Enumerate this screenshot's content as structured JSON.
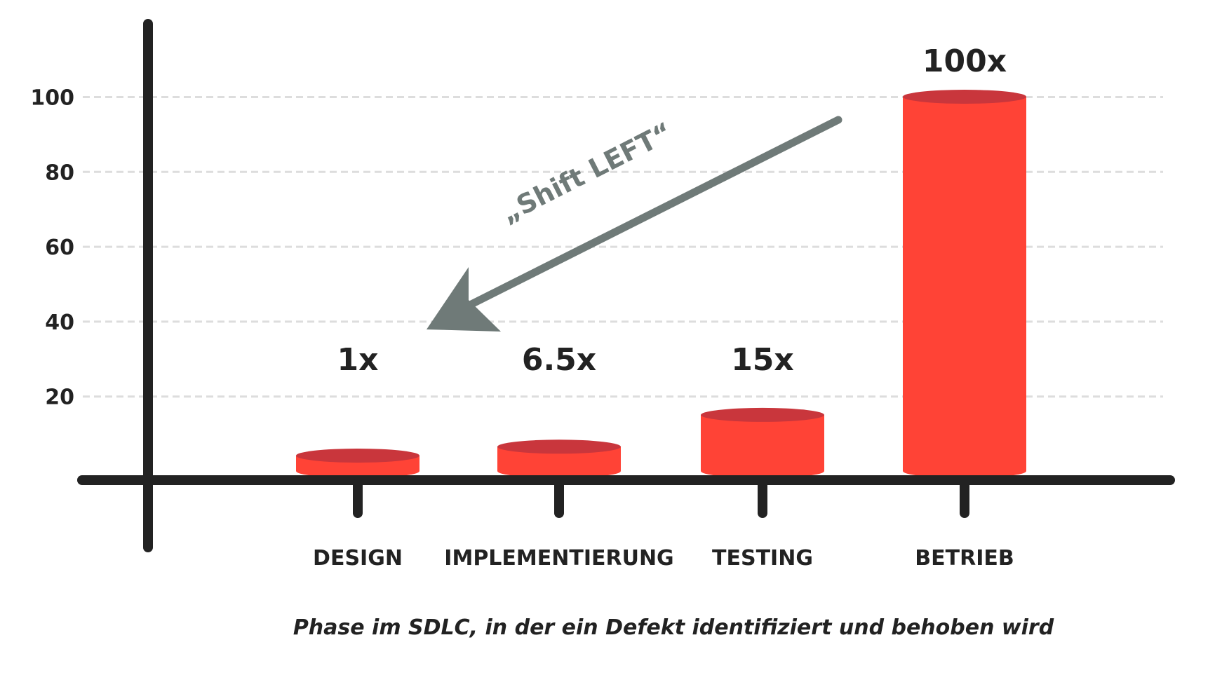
{
  "chart_data": {
    "type": "bar",
    "categories": [
      "DESIGN",
      "IMPLEMENTIERUNG",
      "TESTING",
      "BETRIEB"
    ],
    "values": [
      1,
      6.5,
      15,
      100
    ],
    "data_labels": [
      "1x",
      "6.5x",
      "15x",
      "100x"
    ],
    "xlabel": "Phase im SDLC, in der ein Defekt identifiziert und behoben wird",
    "ylabel": "",
    "title": "",
    "yticks": [
      20,
      40,
      60,
      80,
      100
    ],
    "ytick_labels": [
      "20",
      "40",
      "60",
      "80",
      "100"
    ],
    "ylim": [
      0,
      100
    ],
    "grid": "horizontal dashed",
    "annotation": "„Shift LEFT“",
    "colors": {
      "bar_body": "#ff4336",
      "bar_top": "#c9363c",
      "axis": "#222222",
      "grid": "#dddddd",
      "annotation": "#6f7a78"
    }
  }
}
